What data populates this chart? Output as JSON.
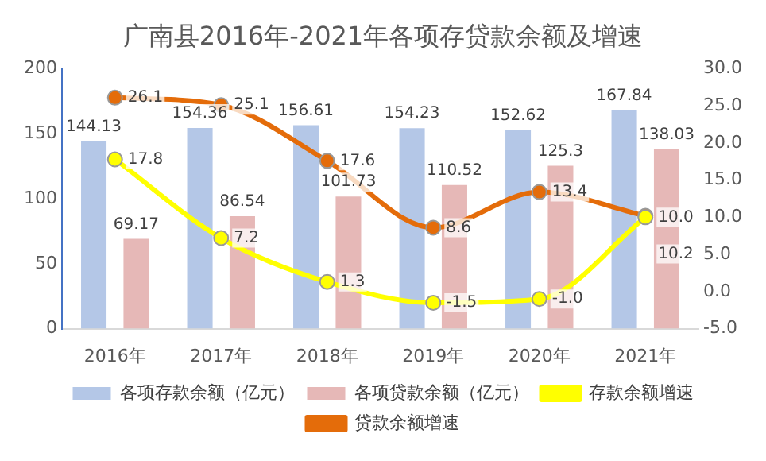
{
  "chart_data": {
    "type": "bar",
    "title": "广南县2016年-2021年各项存贷款余额及增速",
    "categories": [
      "2016年",
      "2017年",
      "2018年",
      "2019年",
      "2020年",
      "2021年"
    ],
    "series": [
      {
        "name": "各项存款余额（亿元）",
        "color": "#b4c7e7",
        "values": [
          144.13,
          154.36,
          156.61,
          154.23,
          152.62,
          167.84
        ],
        "value_labels": [
          "144.13",
          "154.36",
          "156.61",
          "154.23",
          "152.62",
          "167.84"
        ]
      },
      {
        "name": "各项贷款余额（亿元）",
        "color": "#e6b8b7",
        "values": [
          69.17,
          86.54,
          101.73,
          110.52,
          125.3,
          138.03
        ],
        "value_labels": [
          "69.17",
          "86.54",
          "101.73",
          "110.52",
          "125.3",
          "138.03"
        ]
      },
      {
        "name": "存款余额增速",
        "type": "line",
        "axis": "y2",
        "color": "#ffff00",
        "values": [
          17.8,
          7.2,
          1.3,
          -1.5,
          -1.0,
          10.0
        ],
        "value_labels": [
          "17.8",
          "7.2",
          "1.3",
          "-1.5",
          "-1.0",
          "10.0"
        ]
      },
      {
        "name": "贷款余额增速",
        "type": "line",
        "axis": "y2",
        "color": "#e46c0a",
        "values": [
          26.1,
          25.1,
          17.6,
          8.6,
          13.4,
          10.2
        ],
        "value_labels": [
          "26.1",
          "25.1",
          "17.6",
          "8.6",
          "13.4",
          "10.2"
        ]
      }
    ],
    "ylim": [
      0,
      200
    ],
    "yticks": [
      0,
      50,
      100,
      150,
      200
    ],
    "y2lim": [
      -5,
      30
    ],
    "y2ticks": [
      {
        "value": -5,
        "label": "-5.0"
      },
      {
        "value": 0,
        "label": "0.0"
      },
      {
        "value": 5,
        "label": "5.0"
      },
      {
        "value": 10,
        "label": "10.0"
      },
      {
        "value": 15,
        "label": "15.0"
      },
      {
        "value": 20,
        "label": "20.0"
      },
      {
        "value": 25,
        "label": "25.0"
      },
      {
        "value": 30,
        "label": "30.0"
      }
    ],
    "grid": false,
    "legend": "bottom",
    "marker": "circle"
  }
}
